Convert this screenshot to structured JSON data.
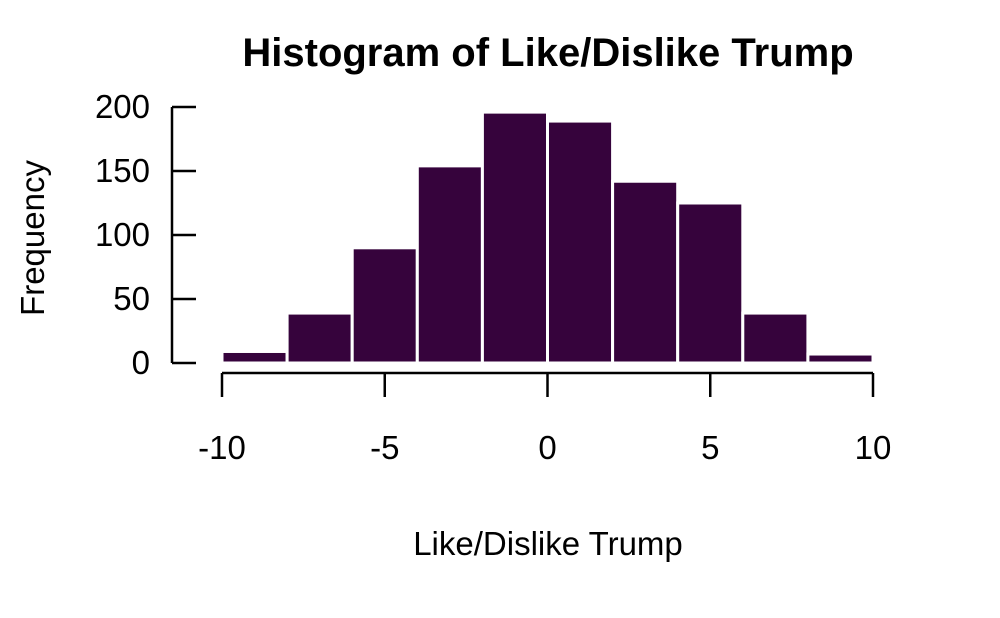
{
  "chart_data": {
    "type": "bar",
    "title": "Histogram of Like/Dislike Trump",
    "xlabel": "Like/Dislike Trump",
    "ylabel": "Frequency",
    "bins": [
      {
        "from": -10,
        "to": -8,
        "count": 9
      },
      {
        "from": -8,
        "to": -6,
        "count": 39
      },
      {
        "from": -6,
        "to": -4,
        "count": 90
      },
      {
        "from": -4,
        "to": -2,
        "count": 154
      },
      {
        "from": -2,
        "to": 0,
        "count": 196
      },
      {
        "from": 0,
        "to": 2,
        "count": 189
      },
      {
        "from": 2,
        "to": 4,
        "count": 142
      },
      {
        "from": 4,
        "to": 6,
        "count": 125
      },
      {
        "from": 6,
        "to": 8,
        "count": 39
      },
      {
        "from": 8,
        "to": 10,
        "count": 7
      }
    ],
    "xlim": [
      -10,
      10
    ],
    "ylim": [
      0,
      200
    ],
    "xticks": [
      -10,
      -5,
      0,
      5,
      10
    ],
    "yticks": [
      0,
      50,
      100,
      150,
      200
    ],
    "xtick_labels": [
      "-10",
      "-5",
      "0",
      "5",
      "10"
    ],
    "ytick_labels": [
      "0",
      "50",
      "100",
      "150",
      "200"
    ],
    "bar_color": "#36033c",
    "bar_edge_color": "#ffffff",
    "grid": false
  }
}
